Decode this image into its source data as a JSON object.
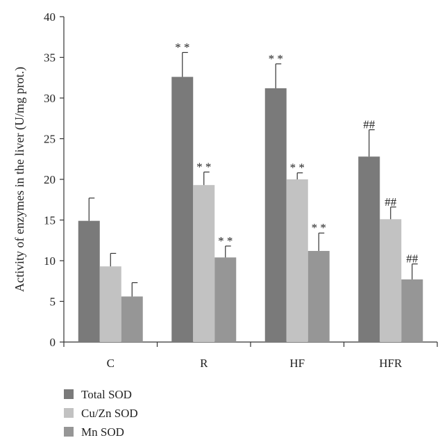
{
  "chart_data": {
    "type": "bar",
    "categories": [
      "C",
      "R",
      "HF",
      "HFR"
    ],
    "series": [
      {
        "name": "Total SOD",
        "color": "#7a7a7a",
        "values": [
          14.9,
          32.6,
          31.2,
          22.8
        ],
        "errors": [
          2.8,
          3.0,
          3.0,
          3.3
        ],
        "annotations": [
          "",
          "* *",
          "* *",
          "##"
        ]
      },
      {
        "name": "Cu/Zn SOD",
        "color": "#c2c2c2",
        "values": [
          9.3,
          19.3,
          20.0,
          15.1
        ],
        "errors": [
          1.6,
          1.6,
          0.8,
          1.5
        ],
        "annotations": [
          "",
          "* *",
          "* *",
          "##"
        ]
      },
      {
        "name": "Mn SOD",
        "color": "#969696",
        "values": [
          5.6,
          10.4,
          11.2,
          7.7
        ],
        "errors": [
          1.7,
          1.4,
          2.2,
          1.9
        ],
        "annotations": [
          "",
          "* *",
          "* *",
          "##"
        ]
      }
    ],
    "ylabel": "Activity of enzymes in the liver (U/mg prot.)",
    "xlabel": "",
    "ylim": [
      0,
      40
    ],
    "yticks": [
      0,
      5,
      10,
      15,
      20,
      25,
      30,
      35,
      40
    ],
    "grid": false,
    "legend_position": "bottom-left"
  }
}
